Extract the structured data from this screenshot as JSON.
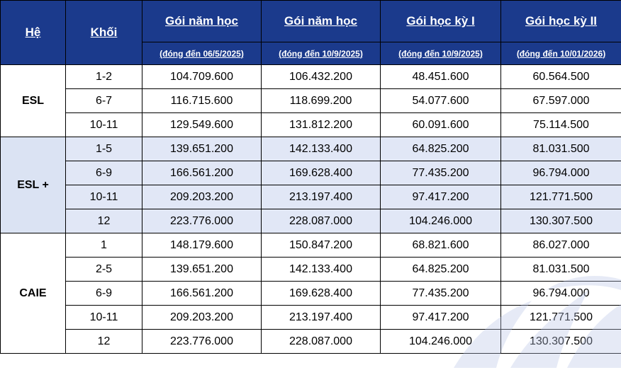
{
  "headers": {
    "system": "Hệ",
    "grade": "Khối",
    "cols": [
      {
        "title": "Gói năm học",
        "sub": "(đóng đến 06/5/2025)"
      },
      {
        "title": "Gói năm học",
        "sub": "(đóng đến 10/9/2025)"
      },
      {
        "title": "Gói học kỳ I",
        "sub": "(đóng đến 10/9/2025)"
      },
      {
        "title": "Gói học kỳ II",
        "sub": "(đóng đến 10/01/2026)"
      }
    ]
  },
  "groups": [
    {
      "name": "ESL",
      "rows": [
        {
          "grade": "1-2",
          "v": [
            "104.709.600",
            "106.432.200",
            "48.451.600",
            "60.564.500"
          ]
        },
        {
          "grade": "6-7",
          "v": [
            "116.715.600",
            "118.699.200",
            "54.077.600",
            "67.597.000"
          ]
        },
        {
          "grade": "10-11",
          "v": [
            "129.549.600",
            "131.812.200",
            "60.091.600",
            "75.114.500"
          ]
        }
      ]
    },
    {
      "name": "ESL +",
      "rows": [
        {
          "grade": "1-5",
          "v": [
            "139.651.200",
            "142.133.400",
            "64.825.200",
            "81.031.500"
          ]
        },
        {
          "grade": "6-9",
          "v": [
            "166.561.200",
            "169.628.400",
            "77.435.200",
            "96.794.000"
          ]
        },
        {
          "grade": "10-11",
          "v": [
            "209.203.200",
            "213.197.400",
            "97.417.200",
            "121.771.500"
          ]
        },
        {
          "grade": "12",
          "v": [
            "223.776.000",
            "228.087.000",
            "104.246.000",
            "130.307.500"
          ]
        }
      ]
    },
    {
      "name": "CAIE",
      "rows": [
        {
          "grade": "1",
          "v": [
            "148.179.600",
            "150.847.200",
            "68.821.600",
            "86.027.000"
          ]
        },
        {
          "grade": "2-5",
          "v": [
            "139.651.200",
            "142.133.400",
            "64.825.200",
            "81.031.500"
          ]
        },
        {
          "grade": "6-9",
          "v": [
            "166.561.200",
            "169.628.400",
            "77.435.200",
            "96.794.000"
          ]
        },
        {
          "grade": "10-11",
          "v": [
            "209.203.200",
            "213.197.400",
            "97.417.200",
            "121.771.500"
          ]
        },
        {
          "grade": "12",
          "v": [
            "223.776.000",
            "228.087.000",
            "104.246.000",
            "130.307.500"
          ]
        }
      ]
    }
  ],
  "colors": {
    "header_bg": "#1b3a8c",
    "header_text": "#ffffff",
    "band_bg": "#dbe3f3"
  },
  "watermark_icon": "wave-watermark-icon"
}
